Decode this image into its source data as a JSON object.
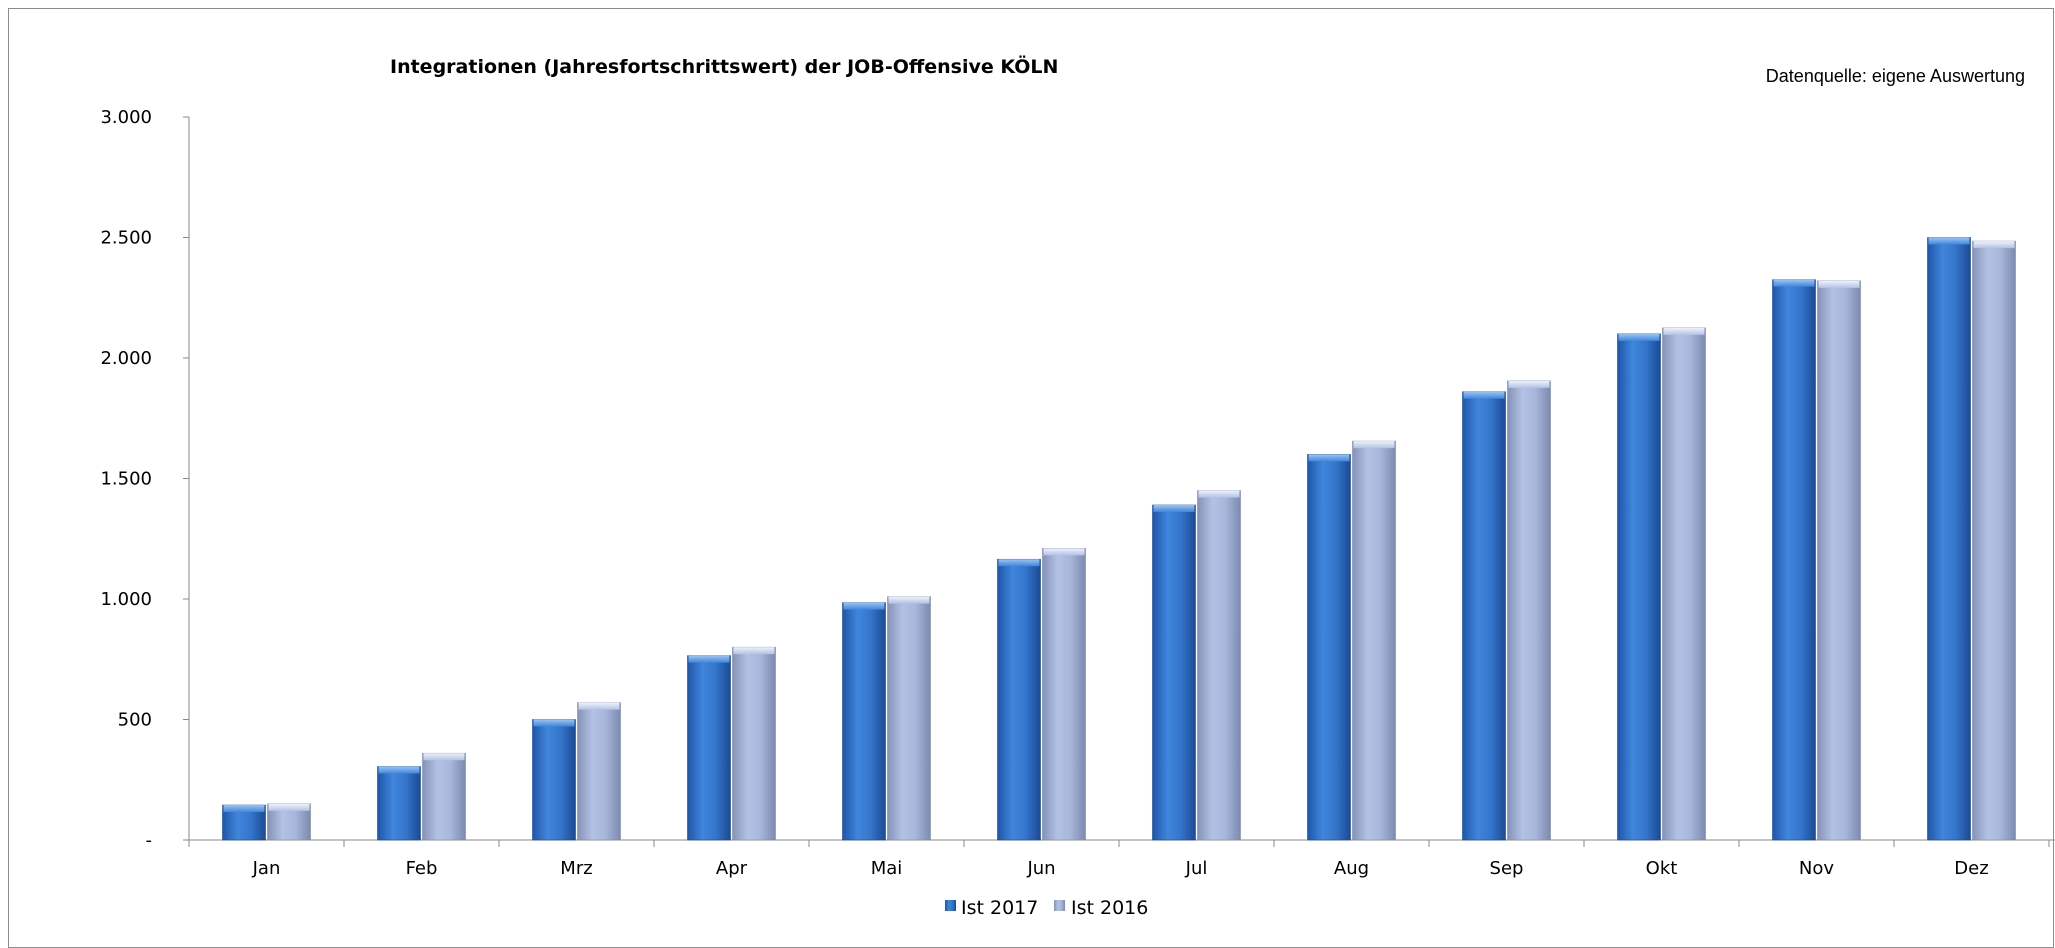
{
  "chart_data": {
    "type": "bar",
    "title": "Integrationen (Jahresfortschrittswert) der JOB-Offensive KÖLN",
    "source_note": "Datenquelle: eigene Auswertung",
    "categories": [
      "Jan",
      "Feb",
      "Mrz",
      "Apr",
      "Mai",
      "Jun",
      "Jul",
      "Aug",
      "Sep",
      "Okt",
      "Nov",
      "Dez"
    ],
    "series": [
      {
        "name": "Ist 2017",
        "color": "#2e6fc4",
        "values": [
          145,
          305,
          500,
          765,
          985,
          1165,
          1390,
          1600,
          1860,
          2100,
          2325,
          2500
        ]
      },
      {
        "name": "Ist 2016",
        "color": "#a9b8dc",
        "values": [
          150,
          360,
          570,
          800,
          1010,
          1210,
          1450,
          1655,
          1905,
          2125,
          2320,
          2485
        ]
      }
    ],
    "ylim": [
      0,
      3000
    ],
    "yticks": [
      0,
      500,
      1000,
      1500,
      2000,
      2500,
      3000
    ],
    "ytick_labels": [
      "-",
      "500",
      "1.000",
      "1.500",
      "2.000",
      "2.500",
      "3.000"
    ],
    "grid": false,
    "legend": "bottom-center"
  }
}
